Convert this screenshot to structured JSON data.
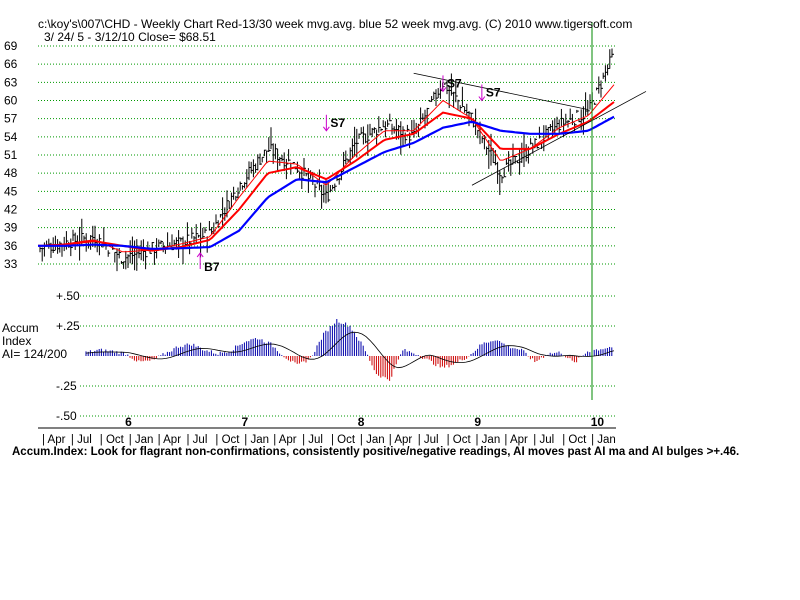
{
  "header": {
    "title_line": "c:\\koy's\\007\\CHD   - Weekly Chart  Red-13/30 week mvg.avg.  blue 52 week mvg.avg.  (C) 2010 www.tigersoft.com",
    "range_line": "3/ 24/ 5 - 3/12/10   Close= $68.51"
  },
  "accum": {
    "label_1": "Accum",
    "label_2": "Index",
    "label_3": "AI= 124/200"
  },
  "footer": {
    "note": "Accum.Index: Look for flagrant non-confirmations, consistently positive/negative readings, AI moves past AI ma and AI bulges >+.46."
  },
  "colors": {
    "bars": "#000000",
    "ma_fast": "#ff0000",
    "ma_slow": "#ff0000",
    "ma_52": "#0000ff",
    "accum_positive": "#0000aa",
    "accum_negative": "#cc0000",
    "signal_arrow": "#cc00cc",
    "grid": "#009900",
    "vertical_marker": "#008800"
  },
  "chart_data": [
    {
      "type": "line",
      "title": "Weekly Chart",
      "y_ticks": [
        "69",
        "66",
        "63",
        "60",
        "57",
        "54",
        "51",
        "48",
        "45",
        "42",
        "39",
        "36",
        "33"
      ],
      "ylim": [
        33,
        69
      ],
      "x_year_labels": [
        "6",
        "7",
        "8",
        "9",
        "10"
      ],
      "x_month_labels": [
        "| Apr",
        "| Jul",
        "| Oct",
        "| Jan",
        "| Apr",
        "| Jul",
        "| Oct",
        "| Jan",
        "| Apr",
        "| Jul",
        "| Oct",
        "| Jan",
        "| Apr",
        "| Jul",
        "| Oct",
        "| Jan",
        "| Apr",
        "| Jul",
        "| Oct",
        "| Jan"
      ],
      "x_dates": [
        "2005-03-24",
        "2005-06",
        "2005-09",
        "2005-12",
        "2006-03",
        "2006-06",
        "2006-09",
        "2006-12",
        "2007-03",
        "2007-06",
        "2007-09",
        "2007-12",
        "2008-03",
        "2008-06",
        "2008-09",
        "2008-12",
        "2009-03",
        "2009-06",
        "2009-09",
        "2009-12",
        "2010-03-12"
      ],
      "series": [
        {
          "name": "Price",
          "values": [
            35.5,
            36.5,
            37.5,
            34.0,
            35.5,
            36.5,
            38.0,
            46.0,
            52.0,
            49.0,
            44.0,
            53.0,
            56.0,
            54.0,
            63.0,
            57.0,
            48.0,
            52.0,
            56.0,
            58.0,
            68.5
          ]
        },
        {
          "name": "13-week MA",
          "values": [
            36.0,
            36.3,
            37.0,
            35.0,
            35.3,
            36.3,
            37.5,
            44.0,
            50.0,
            49.5,
            46.0,
            51.0,
            55.0,
            55.0,
            60.0,
            57.0,
            50.0,
            52.0,
            55.5,
            57.5,
            63.0
          ]
        },
        {
          "name": "30-week MA",
          "values": [
            36.0,
            36.2,
            36.8,
            36.0,
            35.2,
            35.8,
            37.0,
            42.0,
            48.0,
            49.0,
            47.0,
            50.0,
            53.5,
            54.5,
            58.0,
            57.0,
            52.0,
            52.0,
            54.5,
            56.5,
            60.0
          ]
        },
        {
          "name": "52-week MA",
          "values": [
            36.0,
            36.0,
            36.2,
            36.0,
            35.5,
            35.6,
            35.8,
            38.5,
            44.0,
            47.0,
            46.5,
            49.0,
            51.5,
            53.0,
            55.5,
            56.5,
            55.0,
            54.5,
            54.5,
            55.0,
            57.5
          ]
        }
      ],
      "signals": [
        {
          "label": "B7",
          "direction": "up",
          "date": "2006-08",
          "price": 33.5
        },
        {
          "label": "S7",
          "direction": "down",
          "date": "2007-09",
          "price": 55.0
        },
        {
          "label": "S7",
          "direction": "down",
          "date": "2008-09",
          "price": 61.5
        },
        {
          "label": "S7",
          "direction": "down",
          "date": "2009-01",
          "price": 60.0
        }
      ]
    },
    {
      "type": "bar",
      "title": "Accum Index",
      "y_ticks": [
        "+.50",
        "+.25",
        "-.25",
        "-.50"
      ],
      "ylim": [
        -0.5,
        0.5
      ],
      "series": [
        {
          "name": "Accum Index",
          "values": [
            0.03,
            0.05,
            0.04,
            0.02,
            -0.05,
            -0.04,
            0.02,
            0.08,
            0.1,
            0.05,
            0.02,
            0.05,
            0.12,
            0.15,
            0.1,
            0.0,
            -0.08,
            -0.02,
            0.18,
            0.3,
            0.25,
            0.08,
            -0.15,
            -0.2,
            0.05,
            0.02,
            -0.04,
            -0.1,
            -0.06,
            0.0,
            0.1,
            0.14,
            0.08,
            0.05,
            -0.05,
            0.02,
            0.03,
            -0.06,
            0.04,
            0.06,
            0.08
          ]
        }
      ]
    }
  ]
}
